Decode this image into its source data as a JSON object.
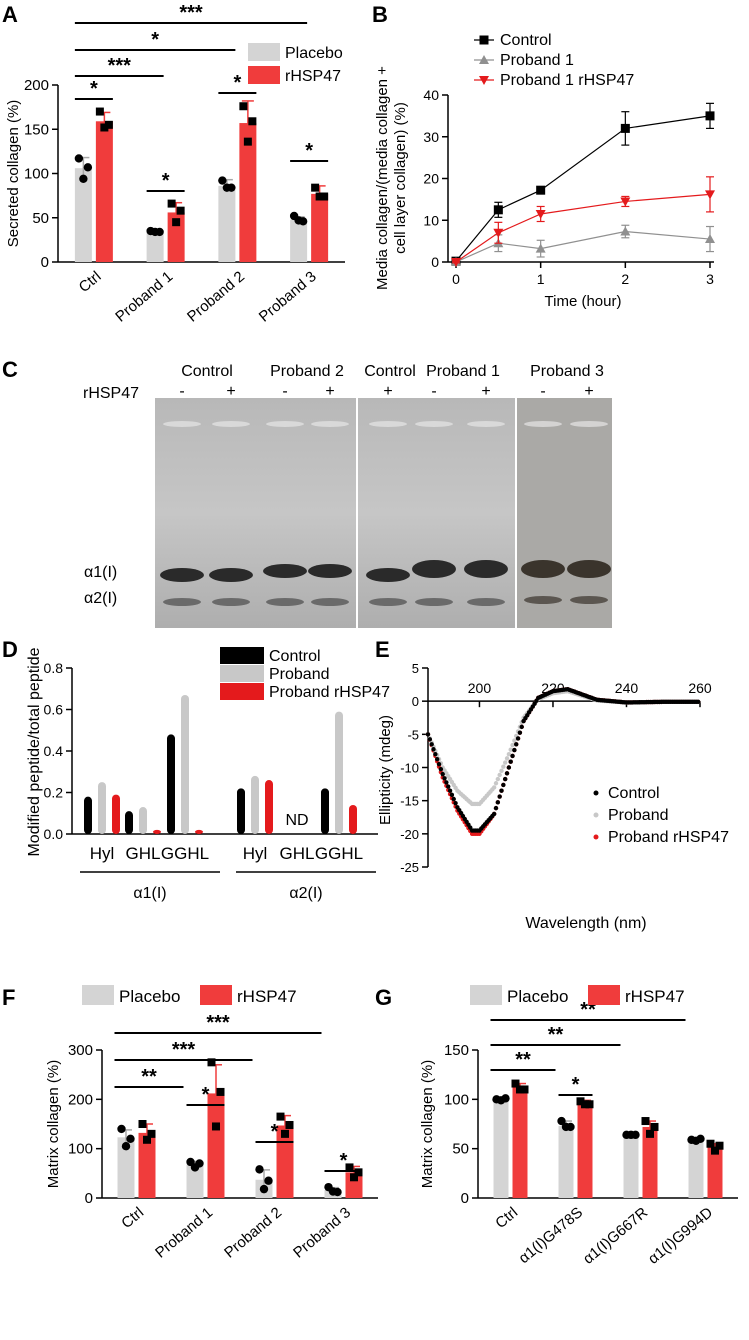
{
  "colors": {
    "placebo": "#d4d4d4",
    "rhsp47": "#f03c3c",
    "control": "#000000",
    "proband": "#c8c8c8",
    "proband1": "#909090",
    "proband_rhsp47": "#e41a1c"
  },
  "panels": {
    "A": {
      "letter": "A"
    },
    "B": {
      "letter": "B"
    },
    "C": {
      "letter": "C"
    },
    "D": {
      "letter": "D"
    },
    "E": {
      "letter": "E"
    },
    "F": {
      "letter": "F"
    },
    "G": {
      "letter": "G"
    }
  },
  "gel": {
    "row_label": "rHSP47",
    "lanes": [
      {
        "group": "Control",
        "signs": [
          "-",
          "+"
        ]
      },
      {
        "group": "Proband 2",
        "signs": [
          "-",
          "+"
        ]
      },
      {
        "group": "Control",
        "signs": [
          "+"
        ]
      },
      {
        "group": "Proband 1",
        "signs": [
          "-",
          "+"
        ]
      },
      {
        "group": "Proband 3",
        "signs": [
          "-",
          "+"
        ]
      }
    ],
    "band_labels": [
      "α1(I)",
      "α2(I)"
    ]
  },
  "chart_data": [
    {
      "panel": "A",
      "type": "bar",
      "ylabel": "Secreted collagen (%)",
      "ylim": [
        0,
        200
      ],
      "yticks": [
        0,
        50,
        100,
        150,
        200
      ],
      "categories": [
        "Ctrl",
        "Proband 1",
        "Proband 2",
        "Proband 3"
      ],
      "series": [
        {
          "name": "Placebo",
          "values": [
            106,
            34,
            86,
            48
          ],
          "errors": [
            12,
            2,
            7,
            3
          ],
          "points": [
            [
              117,
              107,
              94
            ],
            [
              35,
              34,
              34
            ],
            [
              92,
              84,
              84
            ],
            [
              52,
              46,
              47
            ]
          ]
        },
        {
          "name": "rHSP47",
          "values": [
            159,
            56,
            157,
            77
          ],
          "errors": [
            10,
            11,
            25,
            9
          ],
          "points": [
            [
              170,
              155,
              152
            ],
            [
              66,
              58,
              45
            ],
            [
              176,
              159,
              136
            ],
            [
              84,
              74,
              74
            ]
          ]
        }
      ],
      "significance": [
        "*",
        "*",
        "*",
        "*",
        "***",
        "*",
        "***"
      ],
      "legend_position": "top-right"
    },
    {
      "panel": "B",
      "type": "line",
      "xlabel": "Time (hour)",
      "ylabel": "Media collagen/(media collagen + cell layer collagen) (%)",
      "xlim": [
        0,
        3
      ],
      "ylim": [
        0,
        40
      ],
      "xticks": [
        0,
        1,
        2,
        3
      ],
      "yticks": [
        0,
        10,
        20,
        30,
        40
      ],
      "x": [
        0,
        0.5,
        1,
        2,
        3
      ],
      "series": [
        {
          "name": "Control",
          "values": [
            0.2,
            12.5,
            17.2,
            32.0,
            35.0
          ],
          "errors": [
            0.3,
            1.8,
            0.8,
            4.0,
            3.0
          ]
        },
        {
          "name": "Proband 1",
          "values": [
            0,
            4.5,
            3.2,
            7.3,
            5.5
          ],
          "errors": [
            0.2,
            2.0,
            2.0,
            1.5,
            3.0
          ]
        },
        {
          "name": "Proband 1 rHSP47",
          "values": [
            0,
            7.0,
            11.5,
            14.5,
            16.2
          ],
          "errors": [
            0.2,
            2.5,
            1.8,
            1.2,
            4.2
          ]
        }
      ],
      "legend_position": "top-left"
    },
    {
      "panel": "D",
      "type": "bar",
      "ylabel": "Modified peptide/total peptide",
      "ylim": [
        0,
        0.8
      ],
      "yticks": [
        0.0,
        0.2,
        0.4,
        0.6,
        0.8
      ],
      "categories": [
        "Hyl",
        "GHL",
        "GGHL",
        "Hyl",
        "GHL",
        "GGHL"
      ],
      "groups": [
        "α1(I)",
        "α2(I)"
      ],
      "annotation": "ND",
      "series": [
        {
          "name": "Control",
          "values": [
            0.18,
            0.11,
            0.48,
            0.22,
            null,
            0.22
          ]
        },
        {
          "name": "Proband",
          "values": [
            0.25,
            0.13,
            0.67,
            0.28,
            null,
            0.59
          ]
        },
        {
          "name": "Proband rHSP47",
          "values": [
            0.19,
            0.02,
            0.02,
            0.26,
            null,
            0.14
          ]
        }
      ],
      "legend_position": "top-right"
    },
    {
      "panel": "E",
      "type": "scatter",
      "xlabel": "Wavelength (nm)",
      "ylabel": "Ellipticity (mdeg)",
      "xlim": [
        186,
        260
      ],
      "ylim": [
        -25,
        5
      ],
      "xticks": [
        200,
        220,
        240,
        260
      ],
      "yticks": [
        5,
        0,
        -5,
        -10,
        -15,
        -20,
        -25
      ],
      "series": [
        {
          "name": "Control",
          "x": [
            186,
            190,
            194,
            198,
            200,
            204,
            208,
            212,
            216,
            220,
            224,
            228,
            232,
            240,
            250,
            260
          ],
          "values": [
            -5,
            -11,
            -16,
            -19.5,
            -19.5,
            -17,
            -10,
            -3,
            0.5,
            1.5,
            1.8,
            1.0,
            0.2,
            -0.2,
            -0.1,
            -0.1
          ]
        },
        {
          "name": "Proband",
          "x": [
            186,
            190,
            194,
            198,
            200,
            204,
            208,
            212,
            216,
            220,
            224,
            228,
            232,
            240,
            250,
            260
          ],
          "values": [
            -5,
            -10,
            -13.5,
            -15.5,
            -15.5,
            -13,
            -8,
            -2.5,
            0.3,
            1.2,
            1.5,
            0.8,
            0.1,
            -0.2,
            -0.1,
            -0.1
          ]
        },
        {
          "name": "Proband rHSP47",
          "x": [
            186,
            190,
            194,
            198,
            200,
            204,
            208,
            212,
            216,
            220,
            224,
            228,
            232,
            240,
            250,
            260
          ],
          "values": [
            -5,
            -11.5,
            -16.5,
            -20,
            -20,
            -17,
            -10,
            -3,
            0.5,
            1.5,
            1.8,
            1.0,
            0.2,
            -0.2,
            -0.1,
            -0.1
          ]
        }
      ],
      "legend_position": "bottom-right"
    },
    {
      "panel": "F",
      "type": "bar",
      "ylabel": "Matrix collagen (%)",
      "ylim": [
        0,
        300
      ],
      "yticks": [
        0,
        100,
        200,
        300
      ],
      "categories": [
        "Ctrl",
        "Proband 1",
        "Proband 2",
        "Proband 3"
      ],
      "series": [
        {
          "name": "Placebo",
          "values": [
            123,
            68,
            37,
            16
          ],
          "errors": [
            15,
            6,
            20,
            5
          ],
          "points": [
            [
              140,
              120,
              105
            ],
            [
              73,
              70,
              62
            ],
            [
              58,
              35,
              18
            ],
            [
              22,
              12,
              13
            ]
          ]
        },
        {
          "name": "rHSP47",
          "values": [
            132,
            212,
            147,
            52
          ],
          "errors": [
            18,
            58,
            20,
            12
          ],
          "points": [
            [
              150,
              130,
              118
            ],
            [
              275,
              215,
              145
            ],
            [
              165,
              148,
              130
            ],
            [
              62,
              52,
              42
            ]
          ]
        }
      ],
      "significance": [
        "*",
        "*",
        "*",
        "**",
        "***",
        "***"
      ],
      "legend_position": "top"
    },
    {
      "panel": "G",
      "type": "bar",
      "ylabel": "Matrix collagen (%)",
      "ylim": [
        0,
        150
      ],
      "yticks": [
        0,
        50,
        100,
        150
      ],
      "categories": [
        "Ctrl",
        "α1(I)G478S",
        "α1(I)G667R",
        "α1(I)G994D"
      ],
      "series": [
        {
          "name": "Placebo",
          "values": [
            100,
            73,
            64,
            59
          ],
          "errors": [
            2,
            5,
            1,
            1
          ],
          "points": [
            [
              100,
              101,
              99
            ],
            [
              78,
              72,
              72
            ],
            [
              64,
              64,
              64
            ],
            [
              59,
              60,
              58
            ]
          ]
        },
        {
          "name": "rHSP47",
          "values": [
            112,
            96,
            72,
            52
          ],
          "errors": [
            4,
            3,
            6,
            3
          ],
          "points": [
            [
              116,
              110,
              110
            ],
            [
              98,
              95,
              95
            ],
            [
              78,
              72,
              65
            ],
            [
              55,
              53,
              48
            ]
          ]
        }
      ],
      "significance": [
        "*",
        "**",
        "**",
        "**"
      ],
      "legend_position": "top"
    }
  ]
}
